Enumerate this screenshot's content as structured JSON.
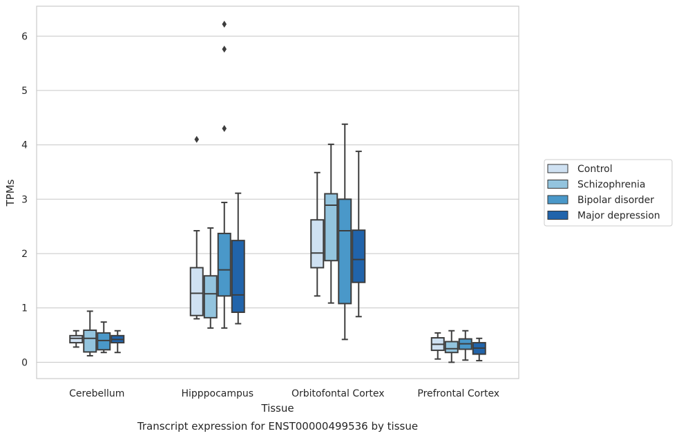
{
  "chart_data": {
    "type": "box",
    "xlabel": "Tissue",
    "ylabel": "TPMs",
    "caption": "Transcript expression for ENST00000499536 by tissue",
    "ylim": [
      -0.3,
      6.55
    ],
    "yticks": [
      0,
      1,
      2,
      3,
      4,
      5,
      6
    ],
    "grid": "horizontal",
    "legend_position": "right",
    "categories": [
      "Cerebellum",
      "Hipppocampus",
      "Orbitofontal Cortex",
      "Prefrontal Cortex"
    ],
    "series": [
      {
        "name": "Control",
        "color": "#cfe1f2",
        "boxes": [
          {
            "min": 0.28,
            "q1": 0.36,
            "median": 0.44,
            "q3": 0.49,
            "max": 0.58,
            "outliers": []
          },
          {
            "min": 0.8,
            "q1": 0.86,
            "median": 1.27,
            "q3": 1.74,
            "max": 2.42,
            "outliers": [
              4.1
            ]
          },
          {
            "min": 1.22,
            "q1": 1.74,
            "median": 2.01,
            "q3": 2.62,
            "max": 3.49,
            "outliers": []
          },
          {
            "min": 0.06,
            "q1": 0.22,
            "median": 0.33,
            "q3": 0.45,
            "max": 0.54,
            "outliers": []
          }
        ]
      },
      {
        "name": "Schizophrenia",
        "color": "#93c4de",
        "boxes": [
          {
            "min": 0.12,
            "q1": 0.19,
            "median": 0.44,
            "q3": 0.59,
            "max": 0.94,
            "outliers": []
          },
          {
            "min": 0.63,
            "q1": 0.82,
            "median": 1.26,
            "q3": 1.59,
            "max": 2.47,
            "outliers": []
          },
          {
            "min": 1.09,
            "q1": 1.87,
            "median": 2.89,
            "q3": 3.1,
            "max": 4.01,
            "outliers": []
          },
          {
            "min": 0.0,
            "q1": 0.18,
            "median": 0.25,
            "q3": 0.38,
            "max": 0.58,
            "outliers": []
          }
        ]
      },
      {
        "name": "Bipolar disorder",
        "color": "#4a98c9",
        "boxes": [
          {
            "min": 0.18,
            "q1": 0.23,
            "median": 0.4,
            "q3": 0.54,
            "max": 0.74,
            "outliers": []
          },
          {
            "min": 0.63,
            "q1": 1.22,
            "median": 1.7,
            "q3": 2.37,
            "max": 2.94,
            "outliers": [
              4.3,
              5.76,
              6.22
            ]
          },
          {
            "min": 0.42,
            "q1": 1.08,
            "median": 2.42,
            "q3": 3.0,
            "max": 4.38,
            "outliers": []
          },
          {
            "min": 0.04,
            "q1": 0.24,
            "median": 0.34,
            "q3": 0.43,
            "max": 0.58,
            "outliers": []
          }
        ]
      },
      {
        "name": "Major depression",
        "color": "#2164ab",
        "boxes": [
          {
            "min": 0.18,
            "q1": 0.36,
            "median": 0.42,
            "q3": 0.49,
            "max": 0.58,
            "outliers": []
          },
          {
            "min": 0.71,
            "q1": 0.92,
            "median": 1.24,
            "q3": 2.24,
            "max": 3.11,
            "outliers": []
          },
          {
            "min": 0.84,
            "q1": 1.47,
            "median": 1.89,
            "q3": 2.43,
            "max": 3.88,
            "outliers": []
          },
          {
            "min": 0.03,
            "q1": 0.15,
            "median": 0.26,
            "q3": 0.36,
            "max": 0.44,
            "outliers": []
          }
        ]
      }
    ]
  }
}
